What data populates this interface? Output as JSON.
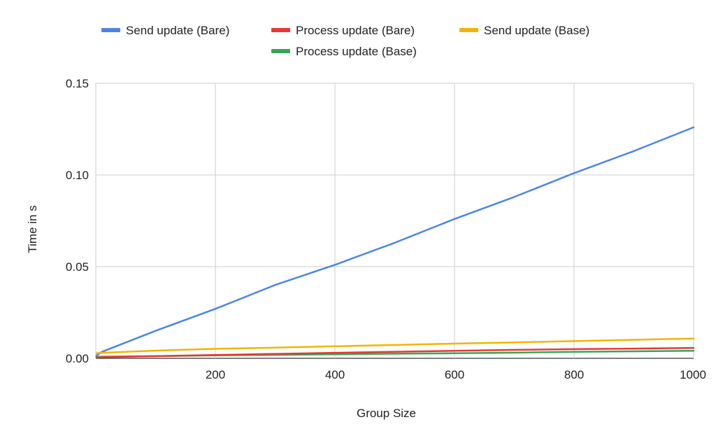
{
  "chart_data": {
    "type": "line",
    "title": "",
    "xlabel": "Group Size",
    "ylabel": "Time in s",
    "xlim": [
      0,
      1000
    ],
    "ylim": [
      0,
      0.15
    ],
    "x_ticks": [
      200,
      400,
      600,
      800,
      1000
    ],
    "x_tick_labels": [
      "200",
      "400",
      "600",
      "800",
      "1000"
    ],
    "y_ticks": [
      0,
      0.05,
      0.1,
      0.15
    ],
    "y_tick_labels": [
      "0.00",
      "0.05",
      "0.10",
      "0.15"
    ],
    "grid": true,
    "legend_position": "top",
    "x": [
      1,
      10,
      100,
      200,
      300,
      400,
      500,
      600,
      700,
      800,
      900,
      1000
    ],
    "series": [
      {
        "name": "Send update (Bare)",
        "color": "#4a86e8",
        "values": [
          0.0015,
          0.0035,
          0.015,
          0.027,
          0.04,
          0.051,
          0.063,
          0.076,
          0.088,
          0.101,
          0.113,
          0.126
        ]
      },
      {
        "name": "Process update (Bare)",
        "color": "#e53935",
        "values": [
          0.0005,
          0.0006,
          0.0012,
          0.0018,
          0.0024,
          0.003,
          0.0036,
          0.0041,
          0.0046,
          0.005,
          0.0053,
          0.0057
        ]
      },
      {
        "name": "Send update (Base)",
        "color": "#f4b400",
        "values": [
          0.0028,
          0.003,
          0.0042,
          0.0052,
          0.0058,
          0.0066,
          0.0073,
          0.008,
          0.0087,
          0.0094,
          0.0101,
          0.0108
        ]
      },
      {
        "name": "Process update (Base)",
        "color": "#34a853",
        "values": [
          0.0008,
          0.0009,
          0.0012,
          0.0016,
          0.0019,
          0.0022,
          0.0025,
          0.0028,
          0.0031,
          0.0035,
          0.0038,
          0.0041
        ]
      }
    ]
  }
}
